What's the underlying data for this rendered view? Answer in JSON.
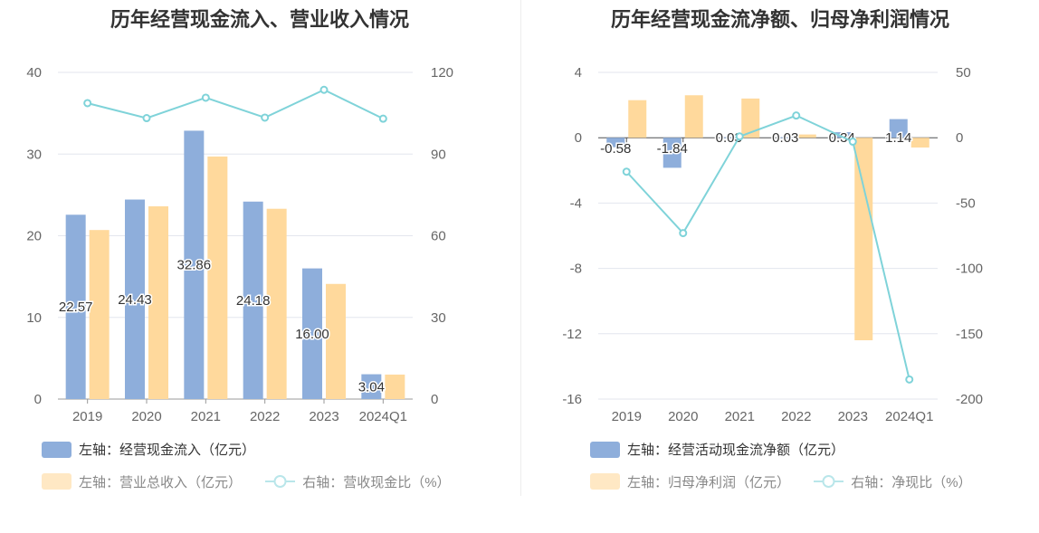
{
  "left": {
    "title": "历年经营现金流入、营业收入情况",
    "chart_data": {
      "type": "bar",
      "categories": [
        "2019",
        "2020",
        "2021",
        "2022",
        "2023",
        "2024Q1"
      ],
      "series": [
        {
          "name": "左轴：经营现金流入（亿元）",
          "axis": "left",
          "kind": "bar",
          "color": "#8eaedb",
          "values": [
            22.57,
            24.43,
            32.86,
            24.18,
            16.0,
            3.04
          ],
          "labels": [
            "22.57",
            "24.43",
            "32.86",
            "24.18",
            "16.00",
            "3.04"
          ]
        },
        {
          "name": "左轴：营业总收入（亿元）",
          "axis": "left",
          "kind": "bar",
          "color": "#ffd99c",
          "values": [
            20.7,
            23.6,
            29.7,
            23.3,
            14.1,
            3.0
          ]
        },
        {
          "name": "右轴：营收现金比（%）",
          "axis": "right",
          "kind": "line",
          "color": "#7fd3d9",
          "values": [
            108.7,
            103.2,
            110.7,
            103.4,
            113.6,
            103.0
          ]
        }
      ],
      "left_axis": {
        "ylim": [
          0,
          40
        ],
        "ticks": [
          "0",
          "10",
          "20",
          "30",
          "40"
        ]
      },
      "right_axis": {
        "ylim": [
          0,
          120
        ],
        "ticks": [
          "0",
          "30",
          "60",
          "90",
          "120"
        ]
      },
      "grid": true,
      "legend_position": "bottom-left"
    }
  },
  "right": {
    "title": "历年经营现金流净额、归母净利润情况",
    "chart_data": {
      "type": "bar",
      "categories": [
        "2019",
        "2020",
        "2021",
        "2022",
        "2023",
        "2024Q1"
      ],
      "series": [
        {
          "name": "左轴：经营活动现金流净额（亿元）",
          "axis": "left",
          "kind": "bar",
          "color": "#8eaedb",
          "values": [
            -0.58,
            -1.84,
            0.03,
            0.03,
            0.34,
            1.14
          ],
          "labels": [
            "-0.58",
            "-1.84",
            "0.03",
            "0.03",
            "0.34",
            "1.14"
          ]
        },
        {
          "name": "左轴：归母净利润（亿元）",
          "axis": "left",
          "kind": "bar",
          "color": "#ffd99c",
          "values": [
            2.3,
            2.6,
            2.4,
            0.2,
            -12.4,
            -0.6
          ]
        },
        {
          "name": "右轴：净现比（%）",
          "axis": "right",
          "kind": "line",
          "color": "#7fd3d9",
          "values": [
            -26,
            -73,
            1,
            17,
            -3,
            -185
          ]
        }
      ],
      "left_axis": {
        "ylim": [
          -16,
          4
        ],
        "ticks": [
          "-16",
          "-12",
          "-8",
          "-4",
          "0",
          "4"
        ]
      },
      "right_axis": {
        "ylim": [
          -200,
          50
        ],
        "ticks": [
          "-200",
          "-150",
          "-100",
          "-50",
          "0",
          "50"
        ]
      },
      "grid": true,
      "legend_position": "bottom-left"
    }
  }
}
